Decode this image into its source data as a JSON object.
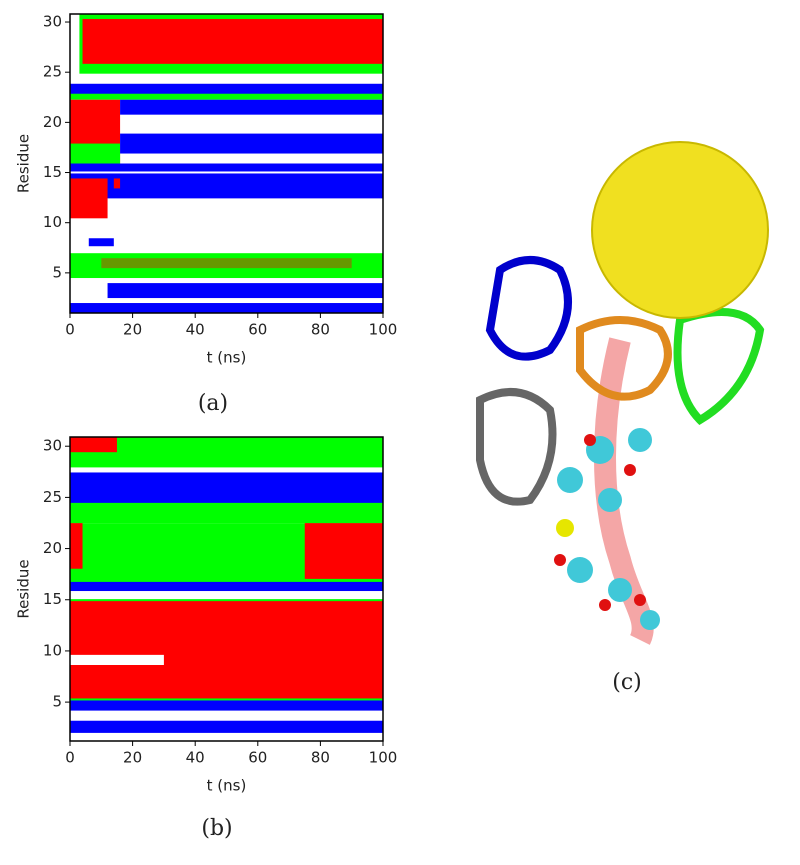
{
  "panels": [
    {
      "caption": "(a)",
      "xlabel": "t (ns)",
      "ylabel": "Residue",
      "xlim": [
        0,
        100
      ],
      "ylim": [
        1,
        30.8
      ],
      "xticks": [
        0,
        20,
        40,
        60,
        80,
        100
      ],
      "yticks": [
        5,
        10,
        15,
        20,
        25,
        30
      ]
    },
    {
      "caption": "(b)",
      "xlabel": "t (ns)",
      "ylabel": "Residue",
      "xlim": [
        0,
        100
      ],
      "ylim": [
        1.2,
        30.9
      ],
      "xticks": [
        0,
        20,
        40,
        60,
        80,
        100
      ],
      "yticks": [
        5,
        10,
        15,
        20,
        25,
        30
      ]
    }
  ],
  "structure_caption": "(c)"
}
